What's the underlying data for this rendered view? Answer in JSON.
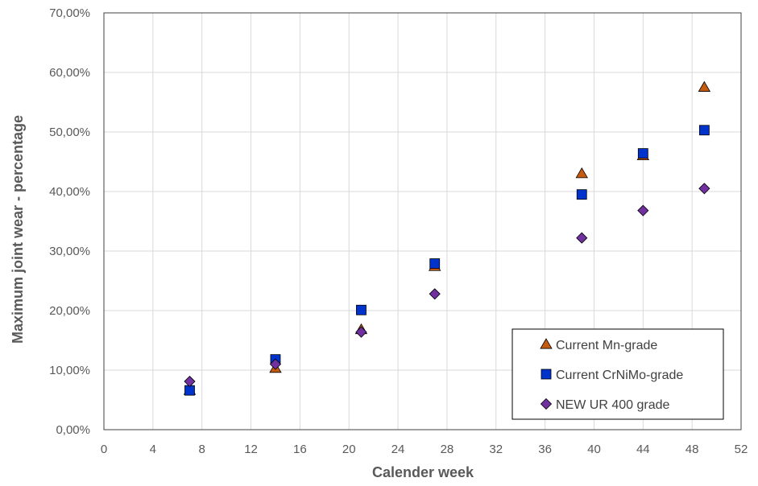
{
  "chart_data": {
    "type": "scatter",
    "title": "",
    "xlabel": "Calender week",
    "ylabel": "Maximum joint wear - percentage",
    "xlim": [
      0,
      52
    ],
    "ylim": [
      0,
      70
    ],
    "x_ticks": [
      "0",
      "4",
      "8",
      "12",
      "16",
      "20",
      "24",
      "28",
      "32",
      "36",
      "40",
      "44",
      "48",
      "52"
    ],
    "y_ticks": [
      "0,00%",
      "10,00%",
      "20,00%",
      "30,00%",
      "40,00%",
      "50,00%",
      "60,00%",
      "70,00%"
    ],
    "grid": true,
    "legend_position": "bottom-right",
    "series": [
      {
        "name": "Current Mn-grade",
        "marker": "triangle",
        "color": "#C55A11",
        "x": [
          7,
          14,
          21,
          27,
          39,
          44,
          49
        ],
        "y": [
          6.6,
          10.3,
          16.8,
          27.4,
          43.0,
          46.0,
          57.5
        ]
      },
      {
        "name": "Current CrNiMo-grade",
        "marker": "square",
        "color": "#0033CC",
        "x": [
          7,
          14,
          21,
          27,
          39,
          44,
          49
        ],
        "y": [
          6.6,
          11.8,
          20.1,
          27.9,
          39.5,
          46.4,
          50.3
        ]
      },
      {
        "name": "NEW UR 400 grade",
        "marker": "diamond",
        "color": "#7030A0",
        "x": [
          7,
          14,
          21,
          27,
          39,
          44,
          49
        ],
        "y": [
          8.1,
          11.0,
          16.4,
          22.8,
          32.2,
          36.8,
          40.5
        ]
      }
    ]
  }
}
